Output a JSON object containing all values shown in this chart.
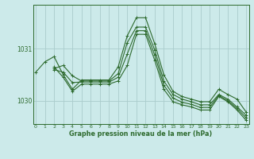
{
  "title": "Graphe pression niveau de la mer (hPa)",
  "bg_color": "#cceaea",
  "grid_color": "#aacccc",
  "line_color": "#2d6a2d",
  "series": [
    {
      "x": [
        0,
        1,
        2,
        3,
        4,
        5,
        6,
        7,
        8,
        9,
        10,
        11,
        12,
        13,
        14,
        15,
        16,
        17,
        18,
        19,
        20,
        21,
        22,
        23
      ],
      "y": [
        1030.55,
        1030.75,
        1030.85,
        1030.5,
        1030.22,
        1030.4,
        1030.4,
        1030.4,
        1030.4,
        1030.65,
        1031.25,
        1031.6,
        1031.6,
        1031.1,
        1030.5,
        1030.18,
        1030.08,
        1030.03,
        1029.98,
        1029.98,
        1030.22,
        1030.12,
        1030.03,
        1029.78
      ]
    },
    {
      "x": [
        2,
        3,
        4,
        5,
        6,
        7,
        8,
        9,
        10,
        11,
        12,
        13,
        14,
        15,
        16,
        17,
        18,
        19,
        20,
        21,
        22,
        23
      ],
      "y": [
        1030.65,
        1030.45,
        1030.18,
        1030.32,
        1030.32,
        1030.32,
        1030.32,
        1030.38,
        1030.68,
        1031.28,
        1031.28,
        1030.78,
        1030.22,
        1029.98,
        1029.92,
        1029.88,
        1029.82,
        1029.82,
        1030.08,
        1029.98,
        1029.82,
        1029.62
      ]
    },
    {
      "x": [
        2,
        3,
        4,
        5,
        6,
        7,
        8,
        9,
        10,
        11,
        12,
        13,
        14,
        15,
        16,
        17,
        18,
        19,
        20,
        21,
        22,
        23
      ],
      "y": [
        1030.62,
        1030.68,
        1030.48,
        1030.38,
        1030.38,
        1030.38,
        1030.38,
        1030.52,
        1031.12,
        1031.42,
        1031.42,
        1030.98,
        1030.38,
        1030.12,
        1030.03,
        1029.98,
        1029.92,
        1029.92,
        1030.12,
        1030.03,
        1029.88,
        1029.72
      ]
    },
    {
      "x": [
        2,
        3,
        4,
        5,
        6,
        7,
        8,
        9,
        10,
        11,
        12,
        13,
        14,
        15,
        16,
        17,
        18,
        19,
        20,
        21,
        22,
        23
      ],
      "y": [
        1030.6,
        1030.55,
        1030.35,
        1030.36,
        1030.36,
        1030.36,
        1030.36,
        1030.45,
        1030.9,
        1031.35,
        1031.35,
        1030.88,
        1030.3,
        1030.05,
        1029.97,
        1029.93,
        1029.87,
        1029.87,
        1030.1,
        1030.0,
        1029.85,
        1029.67
      ]
    }
  ],
  "yticks": [
    1030,
    1031
  ],
  "ylim": [
    1029.55,
    1031.85
  ],
  "xlim": [
    -0.3,
    23.3
  ],
  "xtick_labels": [
    "0",
    "1",
    "2",
    "3",
    "4",
    "5",
    "6",
    "7",
    "8",
    "9",
    "10",
    "11",
    "12",
    "13",
    "14",
    "15",
    "16",
    "17",
    "18",
    "19",
    "20",
    "21",
    "22",
    "23"
  ],
  "figsize": [
    3.2,
    2.0
  ],
  "dpi": 100
}
